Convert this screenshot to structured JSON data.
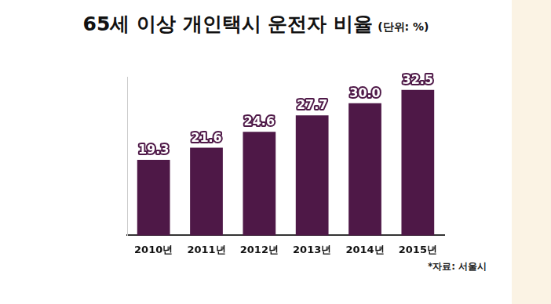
{
  "chart_data": {
    "type": "bar",
    "title": "65세 이상 개인택시 운전자 비율",
    "subtitle": "(단위: %)",
    "categories": [
      "2010년",
      "2011년",
      "2012년",
      "2013년",
      "2014년",
      "2015년"
    ],
    "values": [
      19.3,
      21.6,
      24.6,
      27.7,
      30.0,
      32.5
    ],
    "value_labels": [
      "19.3",
      "21.6",
      "24.6",
      "27.7",
      "30.0",
      "32.5"
    ],
    "color": "#4e1847",
    "ylim": [
      5,
      35
    ],
    "grid": false,
    "data_labels": true,
    "tick_labels": "x",
    "annotations": [
      "*자료: 서울시"
    ]
  }
}
